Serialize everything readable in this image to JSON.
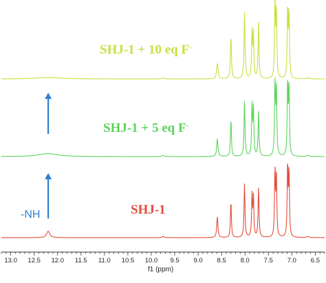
{
  "chart_data": {
    "type": "line",
    "xlabel": "f1 (ppm)",
    "x_reversed": true,
    "xlim": [
      13.2,
      6.3
    ],
    "x_ticks": [
      "13.0",
      "12.5",
      "12.0",
      "11.5",
      "11.0",
      "10.5",
      "10.0",
      "9.5",
      "9.0",
      "8.5",
      "8.0",
      "7.5",
      "7.0",
      "6.5"
    ],
    "grid": false,
    "legend": "none",
    "series": [
      {
        "name": "SHJ-1 + 10 eq F-",
        "label_main": "SHJ-1 + 10 eq F",
        "label_sup": "-",
        "color": "#c8e03c",
        "peaks": [
          {
            "ppm": 12.2,
            "height": 0.02,
            "width": 0.3
          },
          {
            "ppm": 9.75,
            "height": 0.015,
            "width": 0.03
          },
          {
            "ppm": 8.59,
            "height": 0.2,
            "width": 0.018
          },
          {
            "ppm": 8.3,
            "height": 0.55,
            "width": 0.013
          },
          {
            "ppm": 8.01,
            "height": 0.86,
            "width": 0.013
          },
          {
            "ppm": 7.85,
            "height": 0.6,
            "width": 0.011
          },
          {
            "ppm": 7.82,
            "height": 0.57,
            "width": 0.011
          },
          {
            "ppm": 7.71,
            "height": 0.73,
            "width": 0.012
          },
          {
            "ppm": 7.36,
            "height": 1.0,
            "width": 0.011
          },
          {
            "ppm": 7.33,
            "height": 0.88,
            "width": 0.011
          },
          {
            "ppm": 7.09,
            "height": 0.9,
            "width": 0.011
          },
          {
            "ppm": 7.06,
            "height": 0.86,
            "width": 0.011
          },
          {
            "ppm": 6.66,
            "height": 0.015,
            "width": 0.03
          }
        ]
      },
      {
        "name": "SHJ-1 + 5 eq F-",
        "label_main": "SHJ-1 + 5 eq F",
        "label_sup": "-",
        "color": "#5ad45a",
        "peaks": [
          {
            "ppm": 12.2,
            "height": 0.04,
            "width": 0.25
          },
          {
            "ppm": 9.75,
            "height": 0.015,
            "width": 0.03
          },
          {
            "ppm": 8.59,
            "height": 0.24,
            "width": 0.016
          },
          {
            "ppm": 8.3,
            "height": 0.5,
            "width": 0.012
          },
          {
            "ppm": 8.01,
            "height": 0.74,
            "width": 0.012
          },
          {
            "ppm": 7.85,
            "height": 0.67,
            "width": 0.011
          },
          {
            "ppm": 7.82,
            "height": 0.63,
            "width": 0.011
          },
          {
            "ppm": 7.71,
            "height": 0.6,
            "width": 0.012
          },
          {
            "ppm": 7.36,
            "height": 1.0,
            "width": 0.011
          },
          {
            "ppm": 7.33,
            "height": 0.92,
            "width": 0.011
          },
          {
            "ppm": 7.09,
            "height": 0.99,
            "width": 0.011
          },
          {
            "ppm": 7.06,
            "height": 0.94,
            "width": 0.011
          },
          {
            "ppm": 6.66,
            "height": 0.015,
            "width": 0.03
          }
        ]
      },
      {
        "name": "SHJ-1",
        "label_main": "SHJ-1",
        "label_sup": "",
        "color": "#e34a3a",
        "peaks": [
          {
            "ppm": 12.2,
            "height": 0.09,
            "width": 0.04
          },
          {
            "ppm": 9.75,
            "height": 0.015,
            "width": 0.03
          },
          {
            "ppm": 8.59,
            "height": 0.29,
            "width": 0.015
          },
          {
            "ppm": 8.3,
            "height": 0.5,
            "width": 0.012
          },
          {
            "ppm": 8.01,
            "height": 0.75,
            "width": 0.012
          },
          {
            "ppm": 7.85,
            "height": 0.58,
            "width": 0.011
          },
          {
            "ppm": 7.82,
            "height": 0.55,
            "width": 0.011
          },
          {
            "ppm": 7.71,
            "height": 0.69,
            "width": 0.012
          },
          {
            "ppm": 7.36,
            "height": 0.93,
            "width": 0.011
          },
          {
            "ppm": 7.33,
            "height": 0.86,
            "width": 0.011
          },
          {
            "ppm": 7.09,
            "height": 1.0,
            "width": 0.011
          },
          {
            "ppm": 7.06,
            "height": 0.92,
            "width": 0.011
          },
          {
            "ppm": 6.66,
            "height": 0.015,
            "width": 0.03
          }
        ]
      }
    ],
    "annotations": [
      {
        "text": "-NH",
        "ppm": 12.2,
        "color": "#2b7fd4"
      }
    ],
    "arrow_color": "#2b7fd4"
  }
}
